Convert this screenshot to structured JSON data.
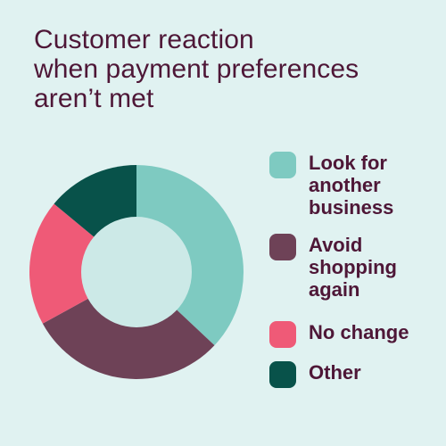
{
  "title_lines": [
    "Customer reaction",
    "when payment preferences",
    "aren’t met"
  ],
  "background": "#e0f2f1",
  "text_color": "#4e1737",
  "chart_data": {
    "type": "pie",
    "donut": true,
    "title": "Customer reaction when payment preferences aren’t met",
    "legend_position": "right",
    "slices": [
      {
        "label": "Look for another business",
        "label_lines": [
          "Look for",
          "another",
          "business"
        ],
        "value": 37,
        "color": "#7ecac1"
      },
      {
        "label": "Avoid shopping again",
        "label_lines": [
          "Avoid",
          "shopping",
          "again"
        ],
        "value": 30,
        "color": "#6e4257"
      },
      {
        "label": "No change",
        "label_lines": [
          "No change"
        ],
        "value": 19,
        "color": "#ef5a77"
      },
      {
        "label": "Other",
        "label_lines": [
          "Other"
        ],
        "value": 14,
        "color": "#08524a"
      }
    ]
  }
}
